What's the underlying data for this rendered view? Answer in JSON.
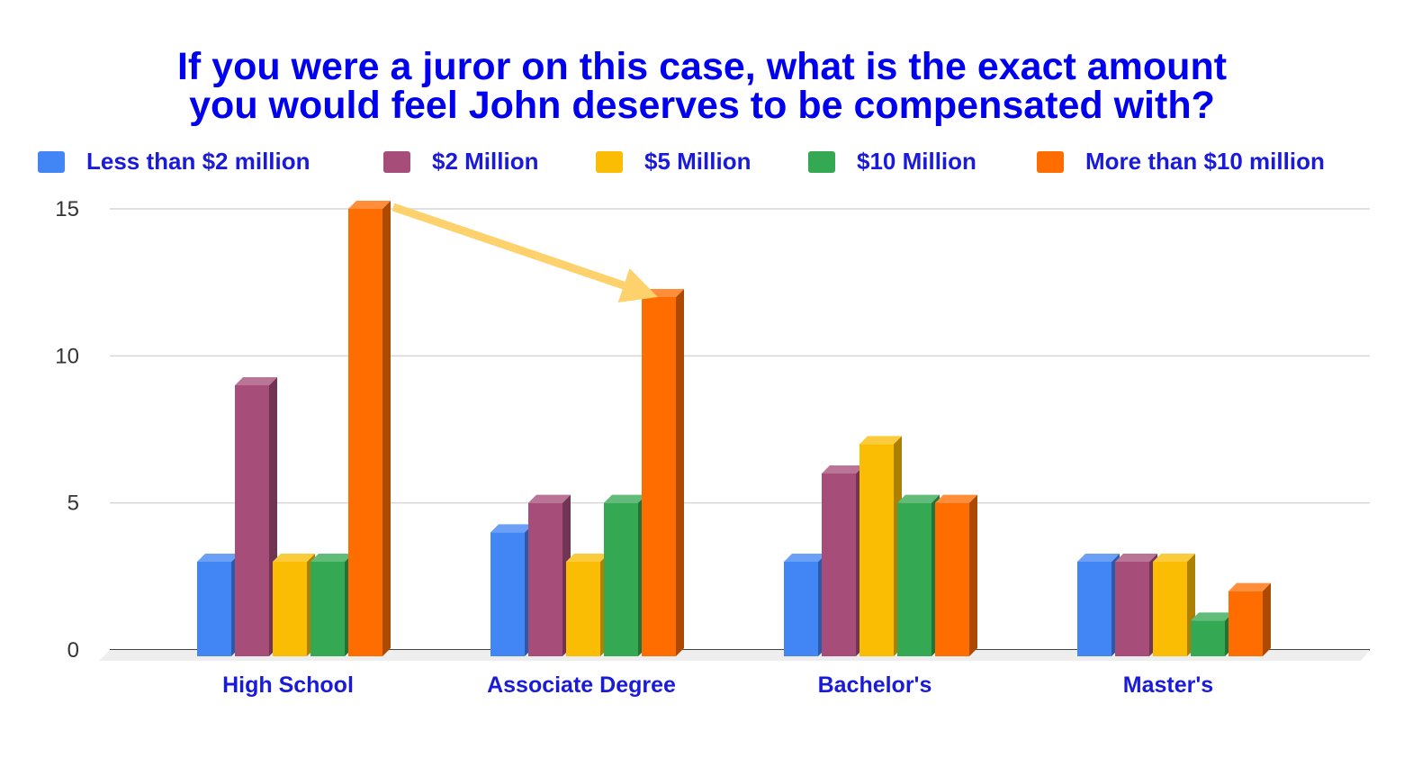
{
  "chart_data": {
    "type": "bar",
    "title_lines": [
      "If you were a juror on this case, what is the exact amount",
      "you would feel John deserves to be compensated with?"
    ],
    "categories": [
      "High School",
      "Associate Degree",
      "Bachelor's",
      "Master's"
    ],
    "series": [
      {
        "name": "Less than $2 million",
        "color": "#4285f4",
        "values": [
          3,
          4,
          3,
          3
        ]
      },
      {
        "name": "$2 Million",
        "color": "#a64d79",
        "values": [
          9,
          5,
          6,
          3
        ]
      },
      {
        "name": "$5 Million",
        "color": "#fbbc04",
        "values": [
          3,
          3,
          7,
          3
        ]
      },
      {
        "name": "$10 Million",
        "color": "#34a853",
        "values": [
          3,
          5,
          5,
          1
        ]
      },
      {
        "name": "More than $10 million",
        "color": "#ff6d01",
        "values": [
          15,
          12,
          5,
          2
        ]
      }
    ],
    "yticks": [
      0,
      5,
      10,
      15
    ],
    "ylim": [
      0,
      15
    ],
    "grid": true,
    "legend_position": "top",
    "style": "3d-bars",
    "annotation": {
      "type": "arrow",
      "color": "#fdd16b",
      "from": {
        "category": "High School",
        "series": "More than $10 million",
        "value": 15
      },
      "to": {
        "category": "Associate Degree",
        "series": "More than $10 million",
        "value": 12
      }
    }
  }
}
